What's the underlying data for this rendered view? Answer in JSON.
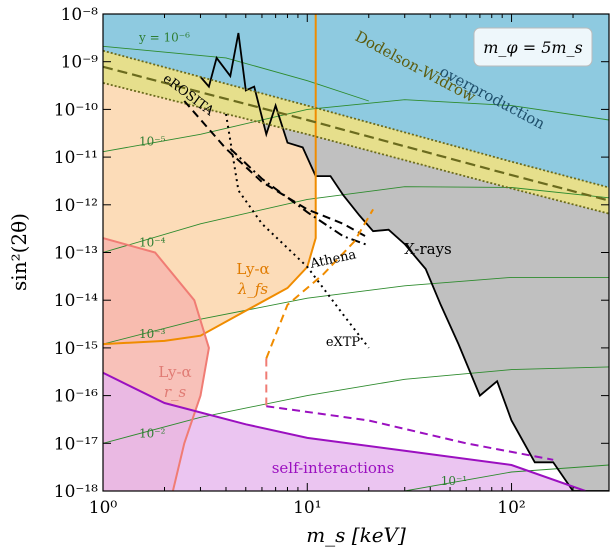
{
  "chart_data": {
    "type": "line",
    "xscale": "log",
    "yscale": "log",
    "xlim": [
      1,
      300
    ],
    "ylim": [
      1e-18,
      1e-08
    ],
    "xlabel": "m_s  [keV]",
    "ylabel": "sin²(2θ)",
    "x_ticks": [
      {
        "value": 1,
        "label": "10⁰"
      },
      {
        "value": 10,
        "label": "10¹"
      },
      {
        "value": 100,
        "label": "10²"
      }
    ],
    "y_ticks": [
      {
        "value": 1e-18,
        "label": "10⁻¹⁸"
      },
      {
        "value": 1e-17,
        "label": "10⁻¹⁷"
      },
      {
        "value": 1e-16,
        "label": "10⁻¹⁶"
      },
      {
        "value": 1e-15,
        "label": "10⁻¹⁵"
      },
      {
        "value": 1e-14,
        "label": "10⁻¹⁴"
      },
      {
        "value": 1e-13,
        "label": "10⁻¹³"
      },
      {
        "value": 1e-12,
        "label": "10⁻¹²"
      },
      {
        "value": 1e-11,
        "label": "10⁻¹¹"
      },
      {
        "value": 1e-10,
        "label": "10⁻¹⁰"
      },
      {
        "value": 1e-09,
        "label": "10⁻⁹"
      },
      {
        "value": 1e-08,
        "label": "10⁻⁸"
      }
    ],
    "legend_box": "m_φ = 5m_s",
    "colors": {
      "overproduction": "#8ecae0",
      "dodelson_widrow": "#e6df8c",
      "dodelson_widrow_line": "#6b6b1e",
      "xrays": "#c0c0c0",
      "lya_lfs": "#fcdcb8",
      "lya_lfs_line": "#f08c00",
      "lya_rs": "#f7b6ad",
      "lya_rs_line": "#f07c74",
      "self_interactions": "#e6b6ee",
      "self_interactions_line": "#9b10c0",
      "y_contours": "#2e8b2e"
    },
    "regions": [
      {
        "name": "overproduction",
        "label": "overproduction",
        "boundary": [
          [
            1,
            1.7e-09
          ],
          [
            10,
            1.2e-10
          ],
          [
            100,
            8e-12
          ],
          [
            300,
            2.3e-12
          ]
        ]
      },
      {
        "name": "Dodelson-Widrow",
        "label": "Dodelson-Widrow",
        "boundary_lower": [
          [
            1,
            3.6e-10
          ],
          [
            10,
            3e-11
          ],
          [
            100,
            2.2e-12
          ],
          [
            300,
            6.5e-13
          ]
        ]
      },
      {
        "name": "X-rays",
        "label": "X-rays",
        "boundary": [
          [
            3,
            4.8e-10
          ],
          [
            3.3,
            3e-10
          ],
          [
            3.6,
            1.2e-09
          ],
          [
            4.2,
            5e-10
          ],
          [
            4.6,
            4e-09
          ],
          [
            5,
            2.5e-10
          ],
          [
            5.5,
            3e-10
          ],
          [
            6.3,
            3e-11
          ],
          [
            7,
            1.2e-10
          ],
          [
            8,
            2e-11
          ],
          [
            9.5,
            1.6e-11
          ],
          [
            11,
            4e-12
          ],
          [
            13,
            4e-12
          ],
          [
            15,
            1.6e-12
          ],
          [
            18,
            6e-13
          ],
          [
            21,
            2.8e-13
          ],
          [
            25,
            3e-13
          ],
          [
            30,
            1.5e-13
          ],
          [
            38,
            4.5e-14
          ],
          [
            45,
            8e-15
          ],
          [
            55,
            1.2e-15
          ],
          [
            70,
            1e-16
          ],
          [
            85,
            2e-16
          ],
          [
            100,
            3e-17
          ],
          [
            130,
            4e-18
          ],
          [
            160,
            4e-18
          ],
          [
            200,
            1e-18
          ],
          [
            300,
            1e-18
          ]
        ]
      },
      {
        "name": "Ly-alpha lambda_fs",
        "label": "Ly-α λ_fs",
        "boundary": [
          [
            1,
            1.2e-15
          ],
          [
            2,
            1.4e-15
          ],
          [
            3,
            1.8e-15
          ],
          [
            5,
            6e-15
          ],
          [
            8,
            1.8e-14
          ],
          [
            10,
            5e-14
          ],
          [
            11,
            2e-13
          ],
          [
            11,
            1e-08
          ]
        ]
      },
      {
        "name": "Ly-alpha r_s",
        "label": "Ly-α r_s",
        "boundary": [
          [
            1,
            2e-13
          ],
          [
            1.8,
            1e-13
          ],
          [
            2.8,
            1e-14
          ],
          [
            3.3,
            1e-15
          ],
          [
            3,
            1e-16
          ],
          [
            2.5,
            1e-17
          ],
          [
            2.2,
            1e-18
          ]
        ]
      },
      {
        "name": "self-interactions",
        "label": "self-interactions",
        "boundary": [
          [
            1,
            3e-16
          ],
          [
            2,
            7e-17
          ],
          [
            5,
            2.5e-17
          ],
          [
            10,
            1.3e-17
          ],
          [
            30,
            7e-18
          ],
          [
            100,
            3.5e-18
          ],
          [
            230,
            1e-18
          ]
        ]
      }
    ],
    "series": [
      {
        "name": "eROSITA",
        "style": "dashed",
        "points": [
          [
            2.5,
            1.5e-10
          ],
          [
            4,
            1.5e-11
          ],
          [
            6,
            3e-12
          ],
          [
            10,
            8e-13
          ],
          [
            15,
            4e-13
          ],
          [
            20,
            2e-13
          ]
        ]
      },
      {
        "name": "Athena",
        "style": "dashdot",
        "points": [
          [
            4.2,
            1.5e-11
          ],
          [
            6,
            3.5e-12
          ],
          [
            10,
            7e-13
          ],
          [
            15,
            2.2e-13
          ],
          [
            20,
            1.4e-13
          ]
        ]
      },
      {
        "name": "eXTP",
        "style": "dotted",
        "points": [
          [
            4,
            8e-11
          ],
          [
            4.6,
            2e-12
          ],
          [
            6,
            4e-13
          ],
          [
            10,
            5e-14
          ],
          [
            15,
            5e-15
          ],
          [
            20,
            1e-15
          ]
        ]
      },
      {
        "name": "Ly-alpha lambda_fs projection",
        "style": "dashed",
        "points": [
          [
            6.3,
            6e-16
          ],
          [
            8,
            8e-15
          ],
          [
            12,
            3.5e-14
          ],
          [
            17,
            1.7e-13
          ],
          [
            21,
            8e-13
          ]
        ]
      },
      {
        "name": "Ly-alpha r_s projection",
        "style": "dashed",
        "points": [
          [
            6.3,
            6e-16
          ],
          [
            6.3,
            6e-17
          ]
        ]
      },
      {
        "name": "self-interactions projection",
        "style": "dashed",
        "points": [
          [
            6.3,
            6e-17
          ],
          [
            20,
            3e-17
          ],
          [
            60,
            1e-17
          ],
          [
            160,
            4.5e-18
          ]
        ]
      }
    ],
    "y_contours": [
      {
        "label": "y = 10⁻⁶",
        "points": [
          [
            1,
            2.1e-09
          ],
          [
            4,
            1.2e-09
          ],
          [
            10,
            4e-10
          ],
          [
            20,
            1.5e-10
          ]
        ]
      },
      {
        "label": "10⁻⁵",
        "points": [
          [
            1,
            1.3e-11
          ],
          [
            3,
            3e-11
          ],
          [
            10,
            1e-10
          ],
          [
            30,
            1.6e-10
          ],
          [
            100,
            1.2e-10
          ],
          [
            300,
            6e-11
          ]
        ]
      },
      {
        "label": "10⁻⁴",
        "points": [
          [
            1,
            1e-13
          ],
          [
            3,
            4e-13
          ],
          [
            10,
            1.3e-12
          ],
          [
            30,
            2.4e-12
          ],
          [
            100,
            2.3e-12
          ],
          [
            300,
            1.4e-12
          ]
        ]
      },
      {
        "label": "10⁻³",
        "points": [
          [
            1,
            1.2e-15
          ],
          [
            3,
            4e-15
          ],
          [
            10,
            1.1e-14
          ],
          [
            30,
            2e-14
          ],
          [
            100,
            3e-14
          ],
          [
            300,
            3e-14
          ]
        ]
      },
      {
        "label": "10⁻²",
        "points": [
          [
            1,
            1e-17
          ],
          [
            3,
            3.5e-17
          ],
          [
            10,
            1e-16
          ],
          [
            30,
            2.2e-16
          ],
          [
            100,
            3.5e-16
          ],
          [
            300,
            4e-16
          ]
        ]
      },
      {
        "label": "10⁻¹",
        "points": [
          [
            30,
            1e-18
          ],
          [
            100,
            2.5e-18
          ],
          [
            300,
            3.5e-18
          ]
        ]
      }
    ],
    "labels": {
      "overproduction": "overproduction",
      "dodelson_widrow": "Dodelson-Widrow",
      "xrays": "X-rays",
      "erosita": "eROSITA",
      "athena": "Athena",
      "extp": "eXTP",
      "lya_lfs_line1": "Ly-α",
      "lya_lfs_line2": "λ_fs",
      "lya_rs_line1": "Ly-α",
      "lya_rs_line2": "r_s",
      "self_interactions": "self-interactions"
    }
  }
}
